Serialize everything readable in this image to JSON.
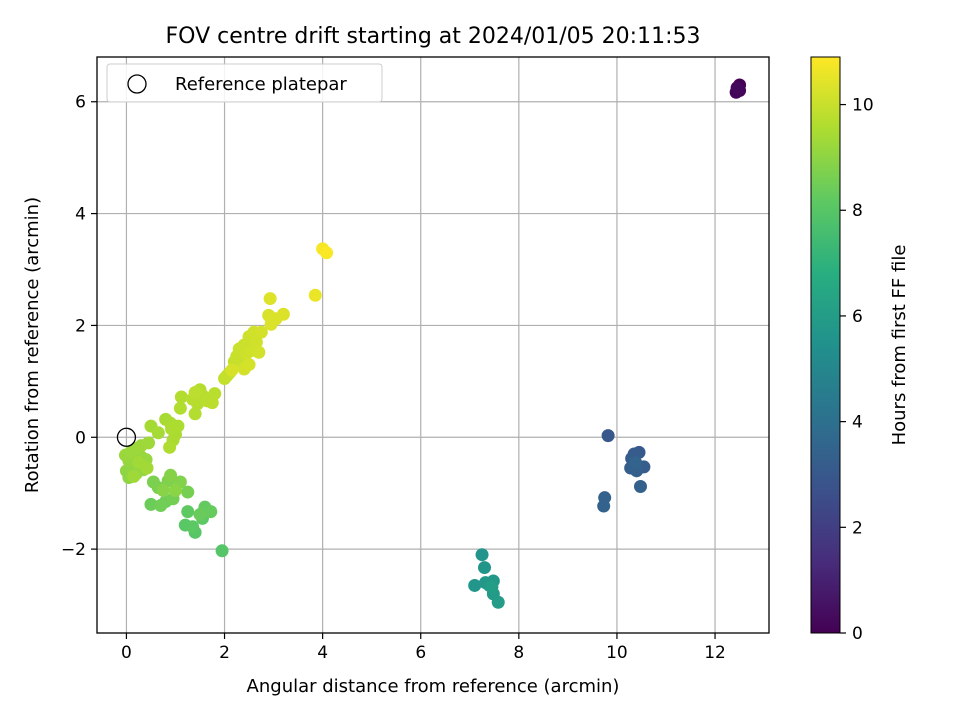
{
  "chart_data": {
    "type": "scatter",
    "title": "FOV centre drift starting at 2024/01/05 20:11:53",
    "xlabel": "Angular distance from reference (arcmin)",
    "ylabel": "Rotation from reference (arcmin)",
    "xlim": [
      -0.6,
      13.1
    ],
    "ylim": [
      -3.5,
      6.8
    ],
    "xticks": [
      0,
      2,
      4,
      6,
      8,
      10,
      12
    ],
    "xtick_labels": [
      "0",
      "2",
      "4",
      "6",
      "8",
      "10",
      "12"
    ],
    "yticks": [
      -2,
      0,
      2,
      4,
      6
    ],
    "ytick_labels": [
      "−2",
      "0",
      "2",
      "4",
      "6"
    ],
    "grid": true,
    "legend": {
      "placement": "upper-left",
      "entries": [
        "Reference platepar"
      ]
    },
    "reference_point": {
      "x": 0,
      "y": 0
    },
    "colorbar": {
      "label": "Hours from first FF file",
      "cmap": "viridis",
      "range": [
        0,
        10.9
      ],
      "ticks": [
        0,
        2,
        4,
        6,
        8,
        10
      ],
      "tick_labels": [
        "0",
        "2",
        "4",
        "6",
        "8",
        "10"
      ]
    },
    "points": [
      {
        "x": 12.5,
        "y": 6.3,
        "t": 0.05
      },
      {
        "x": 12.47,
        "y": 6.22,
        "t": 0.1
      },
      {
        "x": 12.43,
        "y": 6.17,
        "t": 0.15
      },
      {
        "x": 12.5,
        "y": 6.2,
        "t": 0.2
      },
      {
        "x": 12.45,
        "y": 6.25,
        "t": 0.25
      },
      {
        "x": 9.82,
        "y": 0.03,
        "t": 3.0
      },
      {
        "x": 10.45,
        "y": -0.27,
        "t": 3.05
      },
      {
        "x": 10.35,
        "y": -0.3,
        "t": 3.1
      },
      {
        "x": 10.3,
        "y": -0.38,
        "t": 3.15
      },
      {
        "x": 10.55,
        "y": -0.53,
        "t": 3.2
      },
      {
        "x": 10.28,
        "y": -0.55,
        "t": 3.25
      },
      {
        "x": 10.4,
        "y": -0.6,
        "t": 3.3
      },
      {
        "x": 10.48,
        "y": -0.88,
        "t": 3.35
      },
      {
        "x": 9.75,
        "y": -1.08,
        "t": 3.4
      },
      {
        "x": 9.73,
        "y": -1.23,
        "t": 3.45
      },
      {
        "x": 10.38,
        "y": -0.45,
        "t": 3.5
      },
      {
        "x": 7.25,
        "y": -2.1,
        "t": 5.6
      },
      {
        "x": 7.3,
        "y": -2.33,
        "t": 5.65
      },
      {
        "x": 7.1,
        "y": -2.65,
        "t": 5.7
      },
      {
        "x": 7.32,
        "y": -2.6,
        "t": 5.75
      },
      {
        "x": 7.48,
        "y": -2.57,
        "t": 5.8
      },
      {
        "x": 7.4,
        "y": -2.65,
        "t": 5.85
      },
      {
        "x": 7.48,
        "y": -2.8,
        "t": 5.9
      },
      {
        "x": 7.58,
        "y": -2.95,
        "t": 5.95
      },
      {
        "x": 7.45,
        "y": -2.68,
        "t": 6.0
      },
      {
        "x": 1.95,
        "y": -2.03,
        "t": 7.95
      },
      {
        "x": 1.4,
        "y": -1.7,
        "t": 8.0
      },
      {
        "x": 1.2,
        "y": -1.57,
        "t": 8.05
      },
      {
        "x": 1.35,
        "y": -1.6,
        "t": 8.1
      },
      {
        "x": 1.55,
        "y": -1.45,
        "t": 8.15
      },
      {
        "x": 1.25,
        "y": -1.33,
        "t": 8.2
      },
      {
        "x": 1.6,
        "y": -1.25,
        "t": 8.25
      },
      {
        "x": 1.72,
        "y": -1.33,
        "t": 8.3
      },
      {
        "x": 1.5,
        "y": -1.38,
        "t": 8.35
      },
      {
        "x": 0.5,
        "y": -1.2,
        "t": 8.4
      },
      {
        "x": 0.8,
        "y": -1.15,
        "t": 8.45
      },
      {
        "x": 0.7,
        "y": -1.22,
        "t": 8.5
      },
      {
        "x": 0.95,
        "y": -1.1,
        "t": 8.55
      },
      {
        "x": 1.25,
        "y": -0.98,
        "t": 8.6
      },
      {
        "x": 0.65,
        "y": -0.9,
        "t": 8.65
      },
      {
        "x": 0.55,
        "y": -0.8,
        "t": 8.7
      },
      {
        "x": 0.85,
        "y": -0.78,
        "t": 8.75
      },
      {
        "x": 1.1,
        "y": -0.8,
        "t": 8.8
      },
      {
        "x": 0.9,
        "y": -0.68,
        "t": 8.85
      },
      {
        "x": 0.75,
        "y": -0.95,
        "t": 8.9
      },
      {
        "x": 1.0,
        "y": -0.95,
        "t": 8.95
      },
      {
        "x": 0.05,
        "y": -0.72,
        "t": 9.0
      },
      {
        "x": 0.0,
        "y": -0.6,
        "t": 9.02
      },
      {
        "x": 0.1,
        "y": -0.55,
        "t": 9.04
      },
      {
        "x": 0.2,
        "y": -0.65,
        "t": 9.06
      },
      {
        "x": 0.25,
        "y": -0.5,
        "t": 9.08
      },
      {
        "x": 0.35,
        "y": -0.58,
        "t": 9.1
      },
      {
        "x": 0.05,
        "y": -0.42,
        "t": 9.12
      },
      {
        "x": 0.15,
        "y": -0.38,
        "t": 9.14
      },
      {
        "x": 0.3,
        "y": -0.35,
        "t": 9.16
      },
      {
        "x": 0.4,
        "y": -0.4,
        "t": 9.18
      },
      {
        "x": -0.02,
        "y": -0.32,
        "t": 9.2
      },
      {
        "x": 0.1,
        "y": -0.25,
        "t": 9.22
      },
      {
        "x": 0.2,
        "y": -0.2,
        "t": 9.24
      },
      {
        "x": 0.3,
        "y": -0.15,
        "t": 9.26
      },
      {
        "x": 0.45,
        "y": -0.1,
        "t": 9.28
      },
      {
        "x": 0.15,
        "y": -0.7,
        "t": 9.3
      },
      {
        "x": 0.25,
        "y": -0.45,
        "t": 9.32
      },
      {
        "x": 0.42,
        "y": -0.55,
        "t": 9.34
      },
      {
        "x": 0.5,
        "y": 0.2,
        "t": 9.4
      },
      {
        "x": 0.65,
        "y": 0.08,
        "t": 9.42
      },
      {
        "x": 0.8,
        "y": 0.32,
        "t": 9.44
      },
      {
        "x": 0.9,
        "y": 0.25,
        "t": 9.46
      },
      {
        "x": 0.95,
        "y": -0.05,
        "t": 9.48
      },
      {
        "x": 1.0,
        "y": 0.05,
        "t": 9.5
      },
      {
        "x": 0.92,
        "y": 0.15,
        "t": 9.52
      },
      {
        "x": 1.05,
        "y": 0.2,
        "t": 9.54
      },
      {
        "x": 0.88,
        "y": -0.18,
        "t": 9.56
      },
      {
        "x": 1.1,
        "y": 0.52,
        "t": 9.6
      },
      {
        "x": 1.12,
        "y": 0.72,
        "t": 9.62
      },
      {
        "x": 1.4,
        "y": 0.42,
        "t": 9.64
      },
      {
        "x": 1.45,
        "y": 0.6,
        "t": 9.66
      },
      {
        "x": 1.5,
        "y": 0.85,
        "t": 9.68
      },
      {
        "x": 1.35,
        "y": 0.68,
        "t": 9.7
      },
      {
        "x": 1.55,
        "y": 0.75,
        "t": 9.72
      },
      {
        "x": 1.65,
        "y": 0.65,
        "t": 9.74
      },
      {
        "x": 1.8,
        "y": 0.78,
        "t": 9.76
      },
      {
        "x": 1.75,
        "y": 0.62,
        "t": 9.78
      },
      {
        "x": 1.4,
        "y": 0.8,
        "t": 9.8
      },
      {
        "x": 2.0,
        "y": 1.05,
        "t": 9.9
      },
      {
        "x": 2.1,
        "y": 1.15,
        "t": 9.92
      },
      {
        "x": 2.05,
        "y": 1.1,
        "t": 9.94
      },
      {
        "x": 2.2,
        "y": 1.35,
        "t": 9.96
      },
      {
        "x": 2.25,
        "y": 1.45,
        "t": 9.98
      },
      {
        "x": 2.35,
        "y": 1.3,
        "t": 10.0
      },
      {
        "x": 2.3,
        "y": 1.58,
        "t": 10.02
      },
      {
        "x": 2.4,
        "y": 1.65,
        "t": 10.04
      },
      {
        "x": 2.45,
        "y": 1.5,
        "t": 10.06
      },
      {
        "x": 2.5,
        "y": 1.8,
        "t": 10.08
      },
      {
        "x": 2.55,
        "y": 1.55,
        "t": 10.1
      },
      {
        "x": 2.6,
        "y": 1.88,
        "t": 10.12
      },
      {
        "x": 2.65,
        "y": 1.7,
        "t": 10.14
      },
      {
        "x": 2.7,
        "y": 1.52,
        "t": 10.16
      },
      {
        "x": 2.75,
        "y": 1.88,
        "t": 10.18
      },
      {
        "x": 2.4,
        "y": 1.22,
        "t": 10.2
      },
      {
        "x": 2.5,
        "y": 1.3,
        "t": 10.22
      },
      {
        "x": 2.15,
        "y": 1.2,
        "t": 10.24
      },
      {
        "x": 2.9,
        "y": 2.18,
        "t": 10.28
      },
      {
        "x": 2.95,
        "y": 2.02,
        "t": 10.3
      },
      {
        "x": 3.05,
        "y": 2.12,
        "t": 10.32
      },
      {
        "x": 3.2,
        "y": 2.2,
        "t": 10.34
      },
      {
        "x": 2.93,
        "y": 2.48,
        "t": 10.36
      },
      {
        "x": 3.85,
        "y": 2.54,
        "t": 10.6
      },
      {
        "x": 4.0,
        "y": 3.37,
        "t": 10.8
      },
      {
        "x": 4.08,
        "y": 3.3,
        "t": 10.85
      }
    ]
  }
}
